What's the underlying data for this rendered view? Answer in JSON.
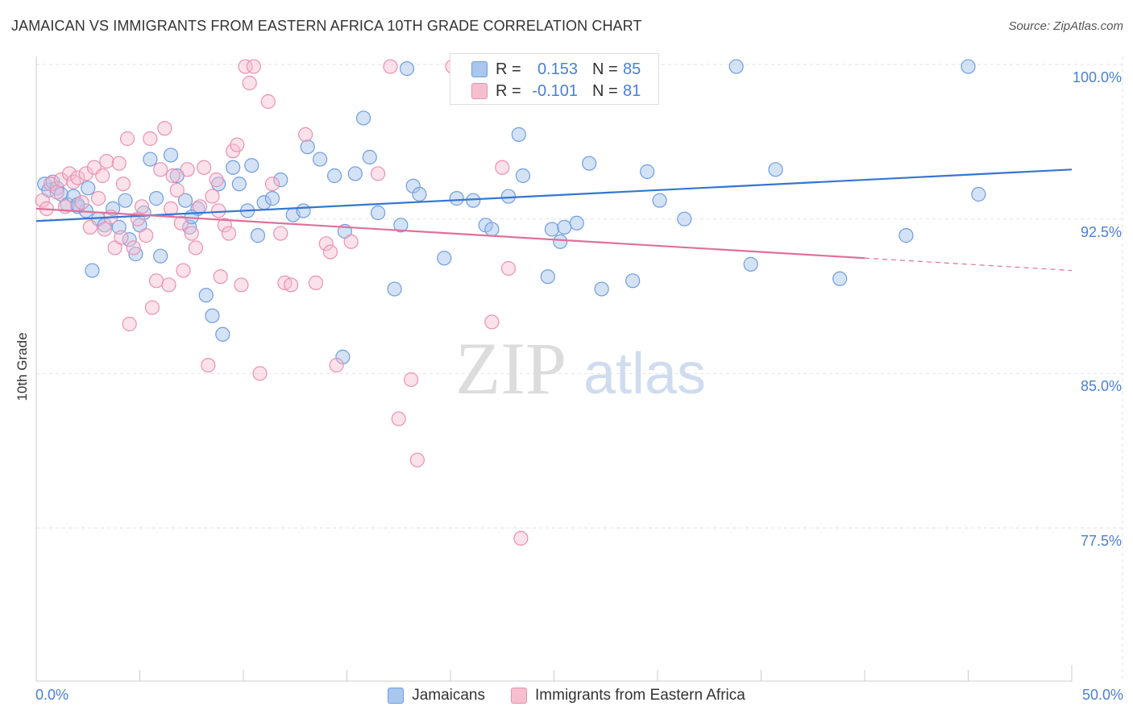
{
  "title": "JAMAICAN VS IMMIGRANTS FROM EASTERN AFRICA 10TH GRADE CORRELATION CHART",
  "source": "Source: ZipAtlas.com",
  "watermark": {
    "zip": "ZIP",
    "atlas": "atlas"
  },
  "legend_top": [
    {
      "r_key": "R =",
      "r_val": "0.153",
      "n_key": "N =",
      "n_val": "85"
    },
    {
      "r_key": "R =",
      "r_val": "-0.101",
      "n_key": "N =",
      "n_val": "81"
    }
  ],
  "colors": {
    "blue_fill": "#a9c6ee",
    "blue_stroke": "#6e9de0",
    "blue_line": "#3575d1",
    "pink_fill": "#f6bfd0",
    "pink_stroke": "#ec8fb0",
    "pink_line": "#e0709a",
    "grid": "#e2e2e2",
    "tick_text": "#4a7fd4"
  },
  "chart_data": {
    "type": "scatter",
    "title": "JAMAICAN VS IMMIGRANTS FROM EASTERN AFRICA 10TH GRADE CORRELATION CHART",
    "xlabel": "",
    "ylabel": "10th Grade",
    "xlim": [
      0,
      50
    ],
    "ylim": [
      70,
      100.8
    ],
    "x_tick_labels": [
      "0.0%",
      "50.0%"
    ],
    "y_ticks": [
      77.5,
      85.0,
      92.5,
      100.0
    ],
    "y_tick_labels": [
      "77.5%",
      "85.0%",
      "92.5%",
      "100.0%"
    ],
    "grid": true,
    "legend_position": "top-center",
    "series": [
      {
        "name": "Jamaicans",
        "r": 0.153,
        "n": 85,
        "trend": {
          "x": [
            0,
            50
          ],
          "y": [
            92.4,
            94.9
          ]
        },
        "points": [
          [
            0.4,
            94.2
          ],
          [
            0.6,
            93.9
          ],
          [
            0.8,
            94.3
          ],
          [
            1.0,
            94.0
          ],
          [
            1.2,
            93.7
          ],
          [
            1.5,
            93.2
          ],
          [
            1.8,
            93.6
          ],
          [
            2.0,
            93.1
          ],
          [
            2.4,
            92.9
          ],
          [
            2.5,
            94.0
          ],
          [
            3.0,
            92.5
          ],
          [
            3.3,
            92.2
          ],
          [
            4.0,
            92.1
          ],
          [
            4.3,
            93.4
          ],
          [
            4.5,
            91.5
          ],
          [
            4.8,
            90.8
          ],
          [
            5.0,
            92.2
          ],
          [
            5.5,
            95.4
          ],
          [
            5.8,
            93.5
          ],
          [
            6.5,
            95.6
          ],
          [
            6.8,
            94.6
          ],
          [
            7.2,
            93.4
          ],
          [
            7.4,
            92.1
          ],
          [
            7.8,
            93.0
          ],
          [
            8.2,
            88.8
          ],
          [
            8.5,
            87.8
          ],
          [
            8.8,
            94.2
          ],
          [
            9.0,
            86.9
          ],
          [
            9.5,
            95.0
          ],
          [
            9.8,
            94.2
          ],
          [
            10.4,
            95.1
          ],
          [
            10.7,
            91.7
          ],
          [
            11.0,
            93.3
          ],
          [
            11.4,
            93.5
          ],
          [
            11.8,
            94.4
          ],
          [
            12.4,
            92.7
          ],
          [
            12.9,
            92.9
          ],
          [
            13.1,
            96.0
          ],
          [
            13.7,
            95.4
          ],
          [
            14.4,
            94.6
          ],
          [
            14.8,
            85.8
          ],
          [
            14.9,
            91.9
          ],
          [
            15.4,
            94.7
          ],
          [
            15.8,
            97.4
          ],
          [
            16.1,
            95.5
          ],
          [
            17.3,
            89.1
          ],
          [
            17.6,
            92.2
          ],
          [
            17.9,
            99.8
          ],
          [
            18.2,
            94.1
          ],
          [
            18.5,
            93.7
          ],
          [
            19.7,
            90.6
          ],
          [
            20.3,
            93.5
          ],
          [
            21.1,
            93.4
          ],
          [
            21.7,
            92.2
          ],
          [
            22.8,
            93.6
          ],
          [
            23.3,
            96.6
          ],
          [
            23.5,
            94.6
          ],
          [
            24.7,
            89.7
          ],
          [
            24.9,
            92.0
          ],
          [
            25.3,
            91.4
          ],
          [
            25.5,
            92.1
          ],
          [
            26.1,
            92.3
          ],
          [
            26.7,
            95.2
          ],
          [
            27.3,
            89.1
          ],
          [
            28.8,
            89.5
          ],
          [
            29.5,
            94.8
          ],
          [
            30.1,
            93.4
          ],
          [
            31.3,
            92.5
          ],
          [
            33.8,
            99.9
          ],
          [
            34.5,
            90.3
          ],
          [
            35.7,
            94.9
          ],
          [
            38.8,
            89.6
          ],
          [
            42.0,
            91.7
          ],
          [
            45.0,
            99.9
          ],
          [
            45.5,
            93.7
          ],
          [
            6.0,
            90.7
          ],
          [
            5.2,
            92.8
          ],
          [
            2.7,
            90.0
          ],
          [
            3.7,
            93.0
          ],
          [
            2.0,
            93.2
          ],
          [
            7.5,
            92.6
          ],
          [
            10.2,
            92.9
          ],
          [
            16.5,
            92.8
          ],
          [
            22.0,
            92.0
          ],
          [
            28.0,
            99.9
          ]
        ]
      },
      {
        "name": "Immigrants from Eastern Africa",
        "r": -0.101,
        "n": 81,
        "trend": {
          "x": [
            0,
            40
          ],
          "y": [
            93.0,
            90.6
          ]
        },
        "trend_dashed": {
          "x": [
            40,
            50
          ],
          "y": [
            90.6,
            90.0
          ]
        },
        "points": [
          [
            0.3,
            93.4
          ],
          [
            0.5,
            93.0
          ],
          [
            0.7,
            94.2
          ],
          [
            1.0,
            93.8
          ],
          [
            1.2,
            94.4
          ],
          [
            1.4,
            93.1
          ],
          [
            1.6,
            94.7
          ],
          [
            1.8,
            94.3
          ],
          [
            2.0,
            94.5
          ],
          [
            2.2,
            93.3
          ],
          [
            2.4,
            94.7
          ],
          [
            2.6,
            92.1
          ],
          [
            2.8,
            95.0
          ],
          [
            3.0,
            93.5
          ],
          [
            3.2,
            94.6
          ],
          [
            3.4,
            95.3
          ],
          [
            3.6,
            92.6
          ],
          [
            3.8,
            91.1
          ],
          [
            4.0,
            95.2
          ],
          [
            4.2,
            94.2
          ],
          [
            4.4,
            96.4
          ],
          [
            4.5,
            87.4
          ],
          [
            4.7,
            91.1
          ],
          [
            4.9,
            92.5
          ],
          [
            5.1,
            93.1
          ],
          [
            5.3,
            91.7
          ],
          [
            5.5,
            96.4
          ],
          [
            5.6,
            88.2
          ],
          [
            5.8,
            89.5
          ],
          [
            6.0,
            94.9
          ],
          [
            6.2,
            96.9
          ],
          [
            6.4,
            89.3
          ],
          [
            6.6,
            94.6
          ],
          [
            6.8,
            93.9
          ],
          [
            7.0,
            92.3
          ],
          [
            7.1,
            90.0
          ],
          [
            7.3,
            94.9
          ],
          [
            7.5,
            91.8
          ],
          [
            7.7,
            91.1
          ],
          [
            7.9,
            93.1
          ],
          [
            8.1,
            95.0
          ],
          [
            8.3,
            85.4
          ],
          [
            8.5,
            93.6
          ],
          [
            8.7,
            94.4
          ],
          [
            8.9,
            89.7
          ],
          [
            9.1,
            92.2
          ],
          [
            9.3,
            91.8
          ],
          [
            9.5,
            95.8
          ],
          [
            9.7,
            96.1
          ],
          [
            9.9,
            89.3
          ],
          [
            10.1,
            99.9
          ],
          [
            10.3,
            99.1
          ],
          [
            10.5,
            99.9
          ],
          [
            10.8,
            85.0
          ],
          [
            11.2,
            98.2
          ],
          [
            11.4,
            94.2
          ],
          [
            13.0,
            96.6
          ],
          [
            13.5,
            89.4
          ],
          [
            14.0,
            91.3
          ],
          [
            14.2,
            90.9
          ],
          [
            14.5,
            85.4
          ],
          [
            15.2,
            91.4
          ],
          [
            16.5,
            94.7
          ],
          [
            17.1,
            99.9
          ],
          [
            17.5,
            82.8
          ],
          [
            18.1,
            84.7
          ],
          [
            18.4,
            80.8
          ],
          [
            20.1,
            99.9
          ],
          [
            22.0,
            87.5
          ],
          [
            22.5,
            95.0
          ],
          [
            22.8,
            90.1
          ],
          [
            23.4,
            77.0
          ],
          [
            26.6,
            99.9
          ],
          [
            29.3,
            99.9
          ],
          [
            3.3,
            92.0
          ],
          [
            4.1,
            91.6
          ],
          [
            6.5,
            93.0
          ],
          [
            8.8,
            92.9
          ],
          [
            11.8,
            91.8
          ],
          [
            12.0,
            89.4
          ],
          [
            12.3,
            89.3
          ]
        ]
      }
    ]
  }
}
